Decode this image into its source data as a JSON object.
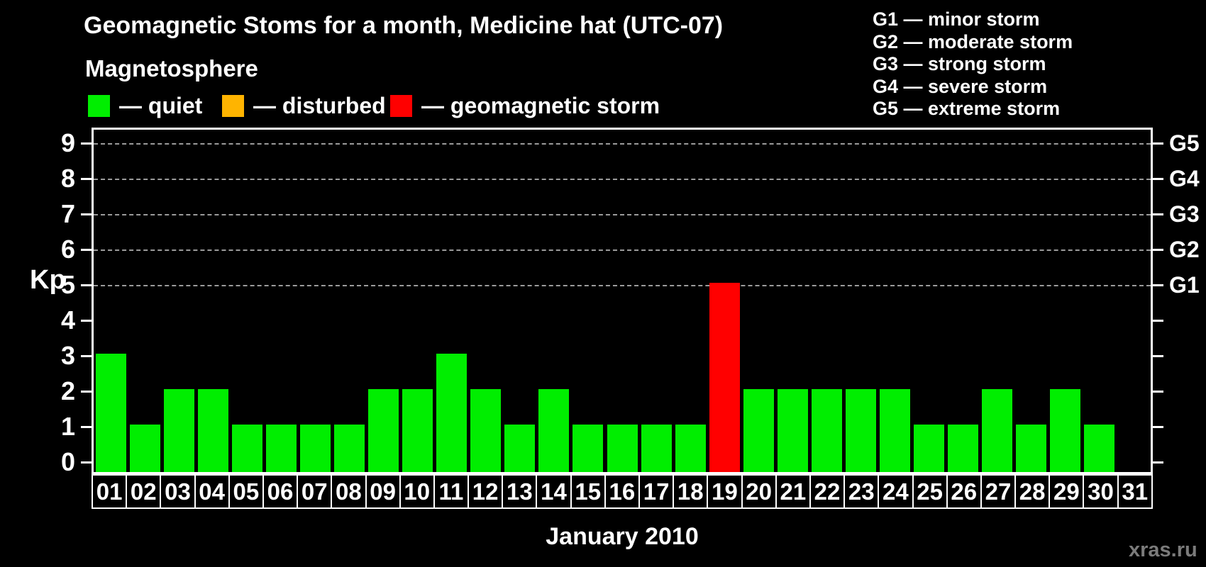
{
  "title": "Geomagnetic Stoms for a month, Medicine hat (UTC-07)",
  "watermark": "xras.ru",
  "legend": {
    "title": "Magnetosphere",
    "items": [
      {
        "name": "quiet",
        "label": "— quiet",
        "color": "#00EE00"
      },
      {
        "name": "disturbed",
        "label": "— disturbed",
        "color": "#FFB400"
      },
      {
        "name": "storm",
        "label": "— geomagnetic storm",
        "color": "#FF0000"
      }
    ]
  },
  "g_legend": [
    "G1 — minor storm",
    "G2 — moderate storm",
    "G3 — strong storm",
    "G4 — severe storm",
    "G5 — extreme storm"
  ],
  "axes": {
    "y_left_label": "Kp",
    "y_ticks": [
      0,
      1,
      2,
      3,
      4,
      5,
      6,
      7,
      8,
      9
    ],
    "y_right_labels": [
      {
        "label": "G1",
        "kp": 5
      },
      {
        "label": "G2",
        "kp": 6
      },
      {
        "label": "G3",
        "kp": 7
      },
      {
        "label": "G4",
        "kp": 8
      },
      {
        "label": "G5",
        "kp": 9
      }
    ],
    "x_label": "January 2010"
  },
  "status_colors": {
    "quiet": "#00EE00",
    "disturbed": "#FFB400",
    "storm": "#FF0000"
  },
  "grid_color": "#9B9B9B",
  "chart_data": {
    "type": "bar",
    "title": "Geomagnetic Stoms for a month, Medicine hat (UTC-07)",
    "xlabel": "January 2010",
    "ylabel": "Kp",
    "ylim": [
      0,
      9
    ],
    "grid": "horizontal dashed lines at Kp 5,6,7,8,9 (G1..G5)",
    "legend_position": "top",
    "categories": [
      "01",
      "02",
      "03",
      "04",
      "05",
      "06",
      "07",
      "08",
      "09",
      "10",
      "11",
      "12",
      "13",
      "14",
      "15",
      "16",
      "17",
      "18",
      "19",
      "20",
      "21",
      "22",
      "23",
      "24",
      "25",
      "26",
      "27",
      "28",
      "29",
      "30",
      "31"
    ],
    "values": [
      3,
      1,
      2,
      2,
      1,
      1,
      1,
      1,
      2,
      2,
      3,
      2,
      1,
      2,
      1,
      1,
      1,
      1,
      5,
      2,
      2,
      2,
      2,
      2,
      1,
      1,
      2,
      1,
      2,
      1,
      0
    ],
    "bar_status": [
      "quiet",
      "quiet",
      "quiet",
      "quiet",
      "quiet",
      "quiet",
      "quiet",
      "quiet",
      "quiet",
      "quiet",
      "quiet",
      "quiet",
      "quiet",
      "quiet",
      "quiet",
      "quiet",
      "quiet",
      "quiet",
      "storm",
      "quiet",
      "quiet",
      "quiet",
      "quiet",
      "quiet",
      "quiet",
      "quiet",
      "quiet",
      "quiet",
      "quiet",
      "quiet",
      "quiet"
    ]
  }
}
